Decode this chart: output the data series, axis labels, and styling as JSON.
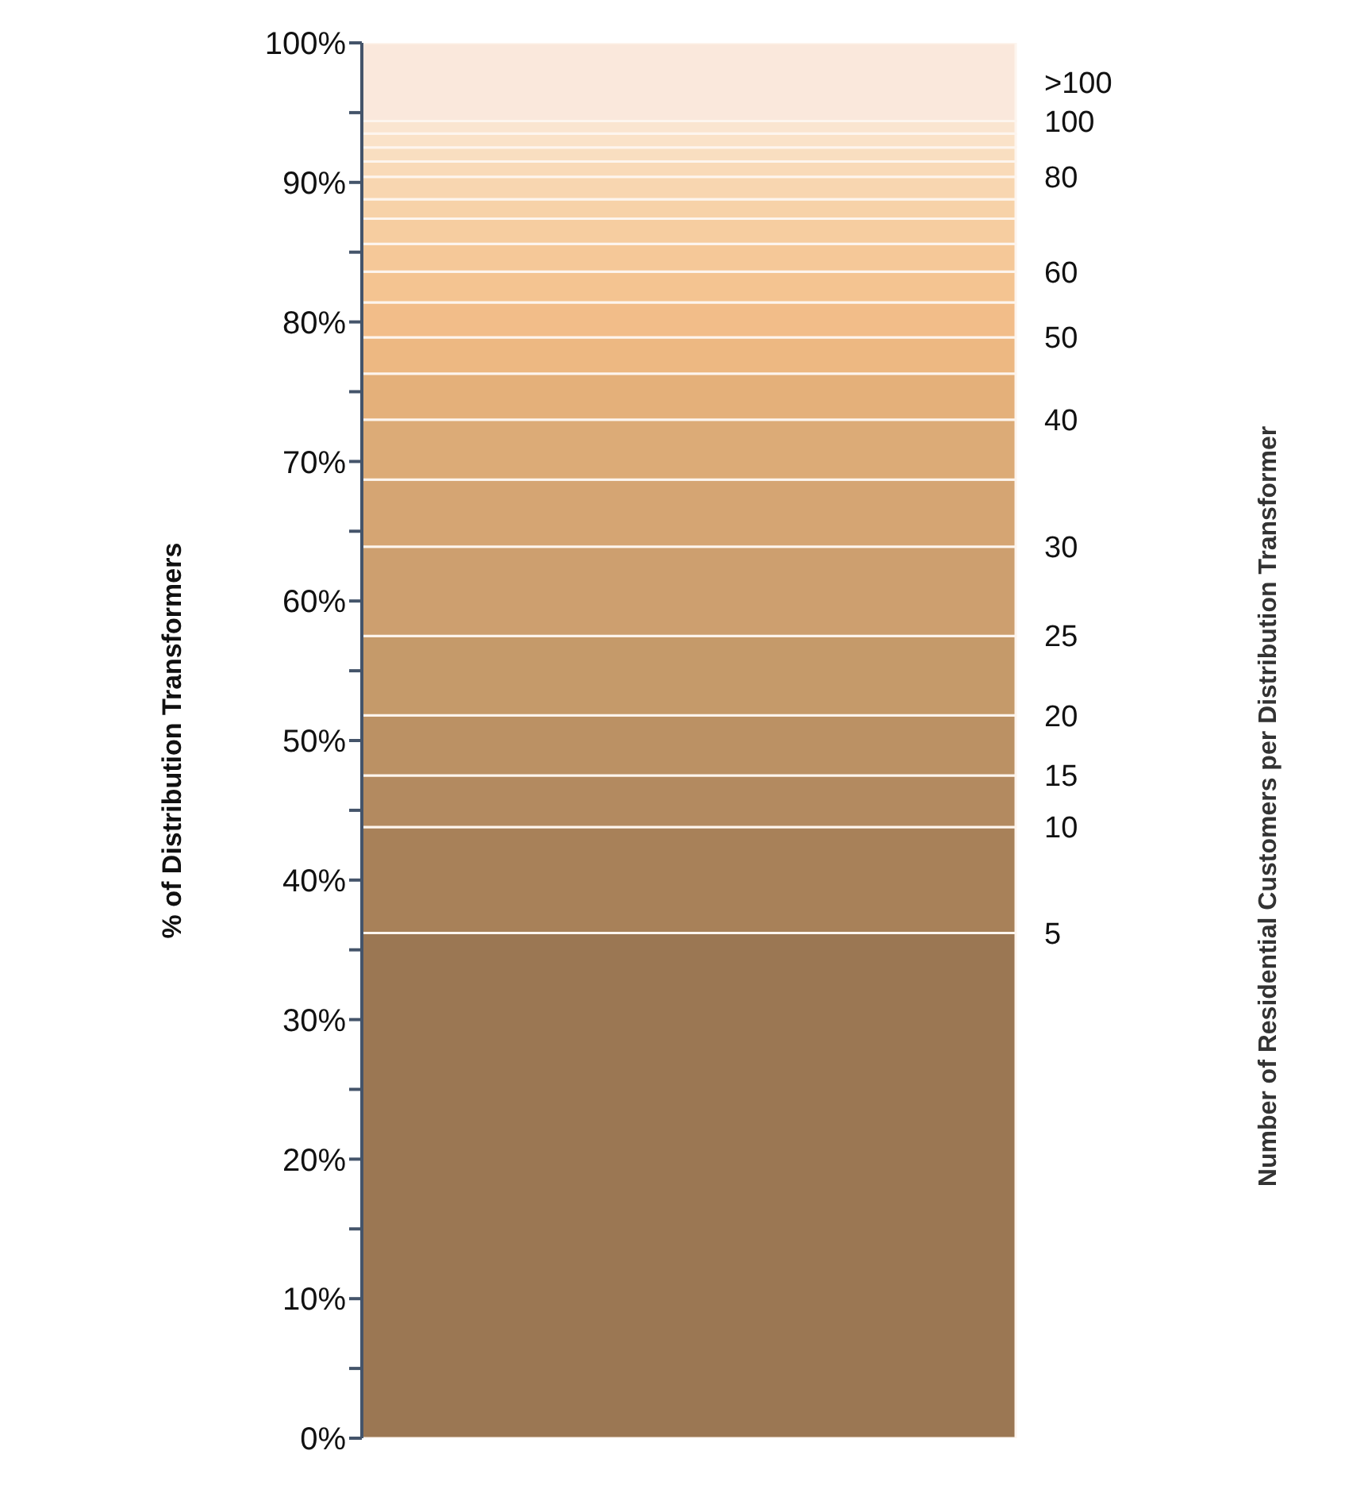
{
  "chart_data": {
    "type": "bar",
    "stacked": true,
    "ylabel": "% of Distribution Transformers",
    "annotations": [
      "Number of Residential Customers per Distribution Transformer"
    ],
    "categories": [
      null
    ],
    "ylim": [
      0,
      100
    ],
    "yticks": [
      {
        "value": 0,
        "label": "0%"
      },
      {
        "value": 5,
        "label": null
      },
      {
        "value": 10,
        "label": "10%"
      },
      {
        "value": 15,
        "label": null
      },
      {
        "value": 20,
        "label": "20%"
      },
      {
        "value": 25,
        "label": null
      },
      {
        "value": 30,
        "label": "30%"
      },
      {
        "value": 35,
        "label": null
      },
      {
        "value": 40,
        "label": "40%"
      },
      {
        "value": 45,
        "label": null
      },
      {
        "value": 50,
        "label": "50%"
      },
      {
        "value": 55,
        "label": null
      },
      {
        "value": 60,
        "label": "60%"
      },
      {
        "value": 65,
        "label": null
      },
      {
        "value": 70,
        "label": "70%"
      },
      {
        "value": 75,
        "label": null
      },
      {
        "value": 80,
        "label": "80%"
      },
      {
        "value": 85,
        "label": null
      },
      {
        "value": 90,
        "label": "90%"
      },
      {
        "value": 95,
        "label": null
      },
      {
        "value": 100,
        "label": "100%"
      }
    ],
    "series": [
      {
        "name": "5",
        "color": "#9b7753",
        "values": [
          36.2
        ]
      },
      {
        "name": "10",
        "color": "#a88159",
        "values": [
          7.6
        ]
      },
      {
        "name": "15",
        "color": "#b38a60",
        "values": [
          3.7
        ]
      },
      {
        "name": "20",
        "color": "#bb9164",
        "values": [
          4.3
        ]
      },
      {
        "name": "25",
        "color": "#c59a6a",
        "values": [
          5.7
        ]
      },
      {
        "name": "30",
        "color": "#cd9f6f",
        "values": [
          6.4
        ]
      },
      {
        "color": "#d5a573",
        "values": [
          4.8
        ]
      },
      {
        "name": "40",
        "color": "#dcab77",
        "values": [
          4.3
        ]
      },
      {
        "color": "#e4b07a",
        "values": [
          3.3
        ]
      },
      {
        "name": "50",
        "color": "#edb882",
        "values": [
          2.6
        ]
      },
      {
        "color": "#f2bd89",
        "values": [
          2.5
        ]
      },
      {
        "name": "60",
        "color": "#f4c491",
        "values": [
          2.2
        ]
      },
      {
        "color": "#f5c898",
        "values": [
          2.0
        ]
      },
      {
        "color": "#f6cda0",
        "values": [
          1.8
        ]
      },
      {
        "color": "#f7d2a8",
        "values": [
          1.4
        ]
      },
      {
        "name": "80",
        "color": "#f8d6b0",
        "values": [
          1.6
        ]
      },
      {
        "color": "#f9dab8",
        "values": [
          1.1
        ]
      },
      {
        "color": "#f9dec0",
        "values": [
          1.0
        ]
      },
      {
        "color": "#fae2c8",
        "values": [
          1.0
        ]
      },
      {
        "name": "100",
        "color": "#fae5d0",
        "values": [
          0.9
        ]
      },
      {
        "name": ">100",
        "color": "#fae8dc",
        "values": [
          5.6
        ]
      }
    ]
  }
}
